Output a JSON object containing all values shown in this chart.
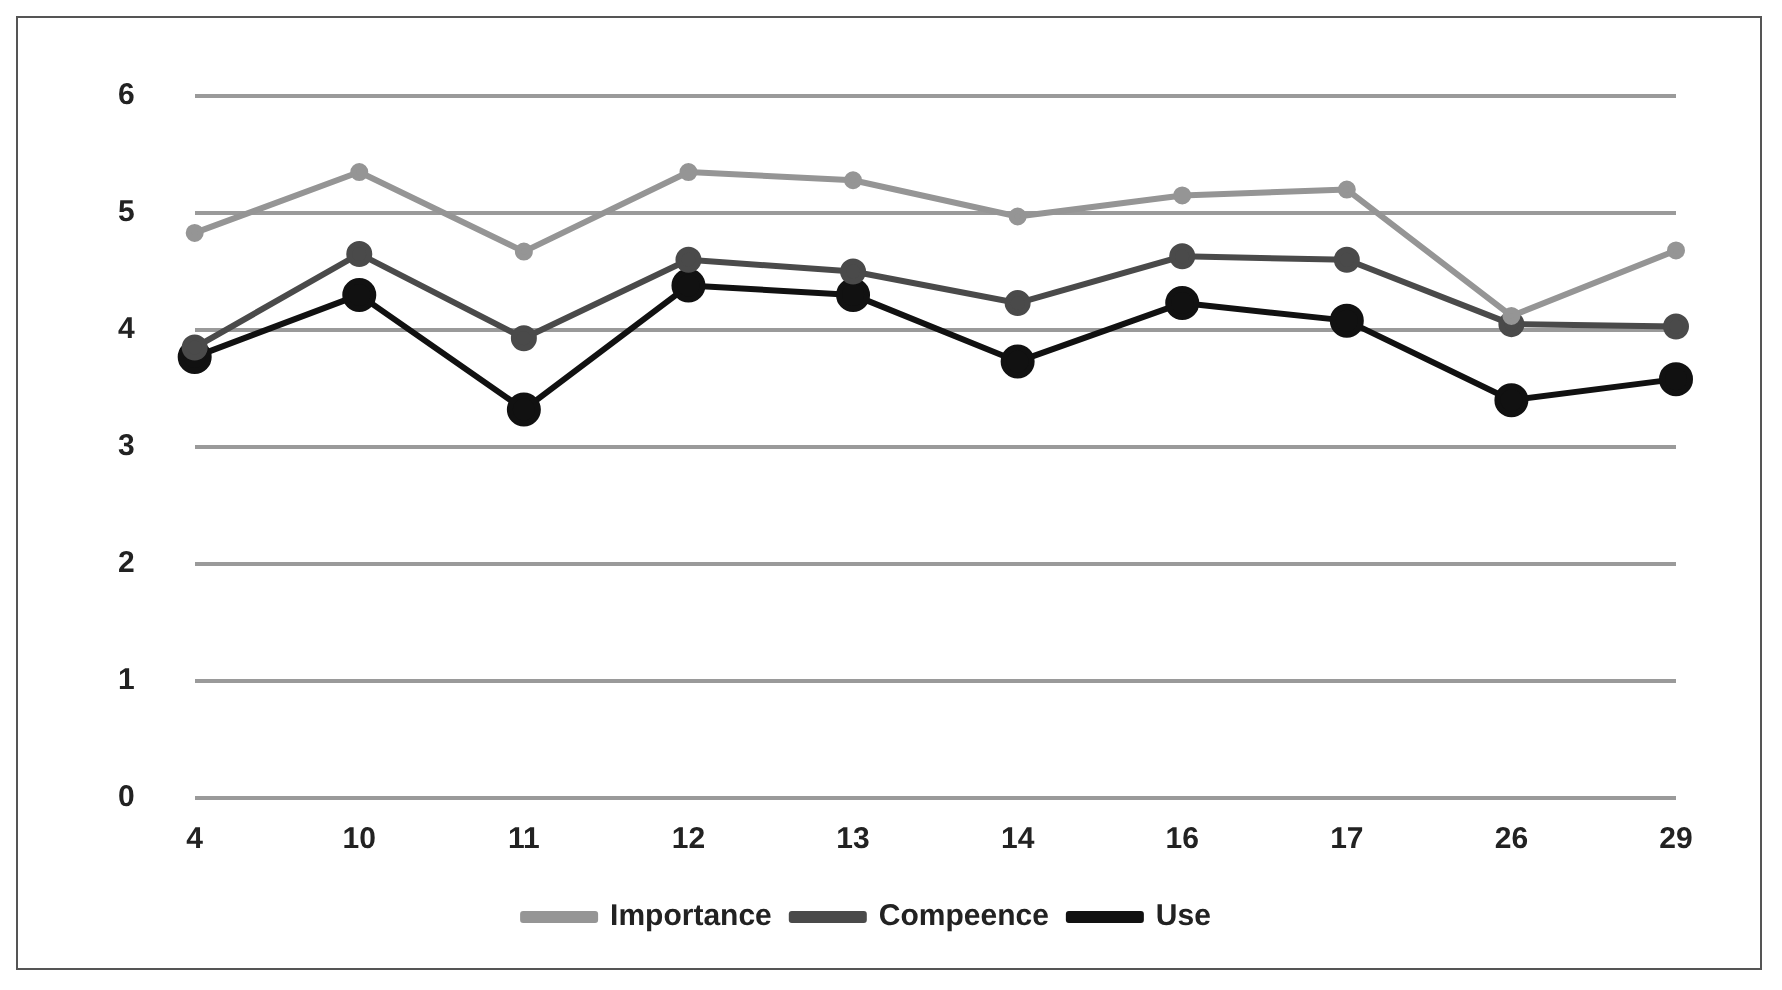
{
  "chart_data": {
    "type": "line",
    "categories": [
      "4",
      "10",
      "11",
      "12",
      "13",
      "14",
      "16",
      "17",
      "26",
      "29"
    ],
    "series": [
      {
        "name": "Importance",
        "color": "#959595",
        "values": [
          4.83,
          5.35,
          4.67,
          5.35,
          5.28,
          4.97,
          5.15,
          5.2,
          4.12,
          4.68
        ]
      },
      {
        "name": "Compeence",
        "color": "#4a4a4a",
        "values": [
          3.85,
          4.65,
          3.93,
          4.6,
          4.5,
          4.23,
          4.63,
          4.6,
          4.05,
          4.03
        ]
      },
      {
        "name": "Use",
        "color": "#111111",
        "values": [
          3.77,
          4.3,
          3.32,
          4.38,
          4.3,
          3.73,
          4.23,
          4.08,
          3.4,
          3.58
        ]
      }
    ],
    "ylim": [
      0,
      6
    ],
    "yticks": [
      0,
      1,
      2,
      3,
      4,
      5,
      6
    ],
    "grid": "y",
    "legend": "bottom",
    "marker": "circle",
    "line_style": "solid"
  }
}
